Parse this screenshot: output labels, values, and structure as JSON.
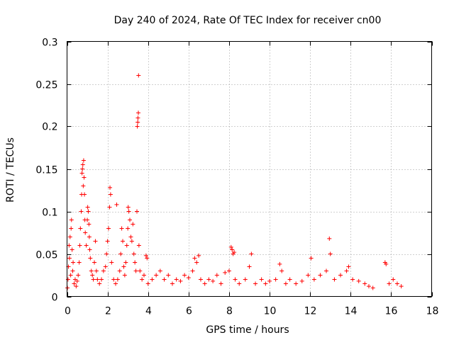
{
  "chart_data": {
    "type": "scatter",
    "title": "Day 240 of 2024, Rate Of TEC Index for receiver cn00",
    "xlabel": "GPS time / hours",
    "ylabel": "ROTI / TECUs",
    "xlim": [
      0,
      18
    ],
    "ylim": [
      0,
      0.3
    ],
    "grid": true,
    "marker": "plus",
    "color": "#ff0000",
    "x_ticks": [
      0,
      2,
      4,
      6,
      8,
      10,
      12,
      14,
      16,
      18
    ],
    "x_tick_labels": [
      "0",
      "2",
      "4",
      "6",
      "8",
      "10",
      "12",
      "14",
      "16",
      "18"
    ],
    "y_ticks": [
      0,
      0.05,
      0.1,
      0.15,
      0.2,
      0.25,
      0.3
    ],
    "y_tick_labels": [
      "0",
      "0.05",
      "0.1",
      "0.15",
      "0.2",
      "0.25",
      "0.3"
    ],
    "series": [
      {
        "name": "ROTI",
        "points": [
          [
            0.02,
            0.01
          ],
          [
            0.05,
            0.02
          ],
          [
            0.07,
            0.035
          ],
          [
            0.1,
            0.06
          ],
          [
            0.12,
            0.045
          ],
          [
            0.15,
            0.07
          ],
          [
            0.18,
            0.025
          ],
          [
            0.2,
            0.08
          ],
          [
            0.22,
            0.09
          ],
          [
            0.25,
            0.055
          ],
          [
            0.28,
            0.03
          ],
          [
            0.3,
            0.04
          ],
          [
            0.35,
            0.015
          ],
          [
            0.4,
            0.02
          ],
          [
            0.45,
            0.012
          ],
          [
            0.5,
            0.018
          ],
          [
            0.55,
            0.025
          ],
          [
            0.6,
            0.04
          ],
          [
            0.63,
            0.06
          ],
          [
            0.66,
            0.08
          ],
          [
            0.7,
            0.1
          ],
          [
            0.72,
            0.12
          ],
          [
            0.74,
            0.145
          ],
          [
            0.76,
            0.15
          ],
          [
            0.78,
            0.155
          ],
          [
            0.8,
            0.13
          ],
          [
            0.82,
            0.16
          ],
          [
            0.84,
            0.14
          ],
          [
            0.86,
            0.12
          ],
          [
            0.88,
            0.09
          ],
          [
            0.9,
            0.075
          ],
          [
            0.95,
            0.06
          ],
          [
            1.0,
            0.09
          ],
          [
            1.02,
            0.105
          ],
          [
            1.05,
            0.1
          ],
          [
            1.08,
            0.085
          ],
          [
            1.1,
            0.07
          ],
          [
            1.12,
            0.055
          ],
          [
            1.15,
            0.045
          ],
          [
            1.2,
            0.03
          ],
          [
            1.25,
            0.025
          ],
          [
            1.3,
            0.02
          ],
          [
            1.35,
            0.04
          ],
          [
            1.4,
            0.065
          ],
          [
            1.45,
            0.03
          ],
          [
            1.5,
            0.02
          ],
          [
            1.6,
            0.015
          ],
          [
            1.7,
            0.02
          ],
          [
            1.8,
            0.03
          ],
          [
            1.9,
            0.035
          ],
          [
            1.95,
            0.05
          ],
          [
            2.0,
            0.065
          ],
          [
            2.05,
            0.08
          ],
          [
            2.1,
            0.105
          ],
          [
            2.12,
            0.128
          ],
          [
            2.15,
            0.12
          ],
          [
            2.2,
            0.04
          ],
          [
            2.3,
            0.02
          ],
          [
            2.4,
            0.015
          ],
          [
            2.45,
            0.108
          ],
          [
            2.5,
            0.02
          ],
          [
            2.6,
            0.03
          ],
          [
            2.65,
            0.05
          ],
          [
            2.7,
            0.08
          ],
          [
            2.75,
            0.065
          ],
          [
            2.8,
            0.035
          ],
          [
            2.85,
            0.025
          ],
          [
            2.9,
            0.04
          ],
          [
            2.95,
            0.06
          ],
          [
            3.0,
            0.08
          ],
          [
            3.02,
            0.105
          ],
          [
            3.05,
            0.1
          ],
          [
            3.1,
            0.09
          ],
          [
            3.15,
            0.07
          ],
          [
            3.2,
            0.065
          ],
          [
            3.25,
            0.085
          ],
          [
            3.3,
            0.05
          ],
          [
            3.35,
            0.04
          ],
          [
            3.4,
            0.03
          ],
          [
            3.45,
            0.1
          ],
          [
            3.47,
            0.2
          ],
          [
            3.49,
            0.205
          ],
          [
            3.5,
            0.21
          ],
          [
            3.52,
            0.216
          ],
          [
            3.53,
            0.26
          ],
          [
            3.55,
            0.06
          ],
          [
            3.6,
            0.03
          ],
          [
            3.7,
            0.02
          ],
          [
            3.8,
            0.025
          ],
          [
            3.9,
            0.048
          ],
          [
            3.95,
            0.045
          ],
          [
            4.0,
            0.015
          ],
          [
            4.2,
            0.02
          ],
          [
            4.4,
            0.025
          ],
          [
            4.6,
            0.03
          ],
          [
            4.8,
            0.02
          ],
          [
            5.0,
            0.025
          ],
          [
            5.2,
            0.015
          ],
          [
            5.4,
            0.02
          ],
          [
            5.6,
            0.018
          ],
          [
            5.8,
            0.025
          ],
          [
            6.0,
            0.022
          ],
          [
            6.2,
            0.03
          ],
          [
            6.3,
            0.045
          ],
          [
            6.4,
            0.04
          ],
          [
            6.5,
            0.048
          ],
          [
            6.6,
            0.02
          ],
          [
            6.8,
            0.015
          ],
          [
            7.0,
            0.02
          ],
          [
            7.2,
            0.018
          ],
          [
            7.4,
            0.025
          ],
          [
            7.6,
            0.015
          ],
          [
            7.8,
            0.028
          ],
          [
            8.0,
            0.03
          ],
          [
            8.1,
            0.058
          ],
          [
            8.15,
            0.055
          ],
          [
            8.2,
            0.05
          ],
          [
            8.25,
            0.052
          ],
          [
            8.3,
            0.02
          ],
          [
            8.5,
            0.015
          ],
          [
            8.8,
            0.02
          ],
          [
            9.0,
            0.035
          ],
          [
            9.1,
            0.05
          ],
          [
            9.3,
            0.015
          ],
          [
            9.6,
            0.02
          ],
          [
            9.8,
            0.015
          ],
          [
            10.0,
            0.018
          ],
          [
            10.3,
            0.02
          ],
          [
            10.5,
            0.038
          ],
          [
            10.6,
            0.03
          ],
          [
            10.8,
            0.015
          ],
          [
            11.0,
            0.02
          ],
          [
            11.3,
            0.015
          ],
          [
            11.6,
            0.018
          ],
          [
            11.9,
            0.025
          ],
          [
            12.05,
            0.045
          ],
          [
            12.2,
            0.02
          ],
          [
            12.5,
            0.025
          ],
          [
            12.8,
            0.03
          ],
          [
            12.95,
            0.068
          ],
          [
            13.0,
            0.05
          ],
          [
            13.2,
            0.02
          ],
          [
            13.5,
            0.025
          ],
          [
            13.8,
            0.03
          ],
          [
            13.9,
            0.035
          ],
          [
            14.1,
            0.02
          ],
          [
            14.4,
            0.018
          ],
          [
            14.7,
            0.015
          ],
          [
            14.9,
            0.012
          ],
          [
            15.1,
            0.01
          ],
          [
            15.7,
            0.04
          ],
          [
            15.75,
            0.038
          ],
          [
            15.9,
            0.015
          ],
          [
            16.1,
            0.02
          ],
          [
            16.3,
            0.015
          ],
          [
            16.5,
            0.012
          ]
        ]
      }
    ]
  }
}
